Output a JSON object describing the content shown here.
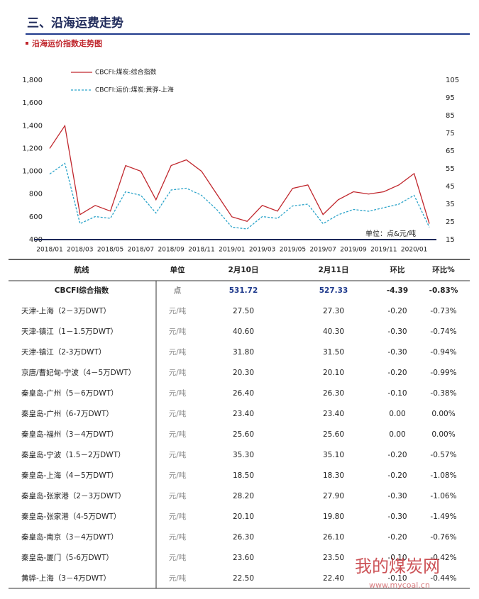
{
  "header": {
    "title": "三、沿海运费走势",
    "subtitle": "沿海运价指数走势图"
  },
  "chart_data": {
    "type": "line",
    "categories": [
      "2018/01",
      null,
      "2018/03",
      null,
      "2018/05",
      null,
      "2018/07",
      null,
      "2018/09",
      null,
      "2018/11",
      null,
      "2019/01",
      null,
      "2019/03",
      null,
      "2019/05",
      null,
      "2019/07",
      null,
      "2019/09",
      null,
      "2019/11",
      null,
      "2020/01",
      null
    ],
    "series": [
      {
        "name": "CBCFI:煤炭:综合指数",
        "color": "#c0272d",
        "values": [
          1200,
          1400,
          620,
          700,
          650,
          1050,
          1000,
          750,
          1050,
          1100,
          1000,
          800,
          600,
          560,
          700,
          650,
          850,
          880,
          620,
          750,
          820,
          800,
          820,
          880,
          980,
          540
        ]
      },
      {
        "name": "CBCFI:运价:煤炭:黄骅-上海",
        "color": "#2aa3c9",
        "axis": "y2",
        "dashed": true,
        "values": [
          52,
          58,
          24,
          28,
          27,
          42,
          40,
          30,
          43,
          44,
          40,
          32,
          22,
          21,
          28,
          27,
          34,
          35,
          24,
          29,
          32,
          31,
          33,
          35,
          40,
          22
        ]
      }
    ],
    "ylim": [
      400,
      1800
    ],
    "yticks": [
      {
        "value": 1800,
        "label": "1,800"
      },
      {
        "value": 1600,
        "label": "1,600"
      },
      {
        "value": 1400,
        "label": "1,400"
      },
      {
        "value": 1200,
        "label": "1,200"
      },
      {
        "value": 1000,
        "label": "1,000"
      },
      800,
      600,
      400
    ],
    "y2lim": [
      15,
      105
    ],
    "y2ticks": [
      105,
      95,
      85,
      75,
      65,
      55,
      45,
      35,
      25,
      15
    ],
    "annotation": "单位：点&元/吨"
  },
  "table": {
    "header": [
      "航线",
      "单位",
      "2月10日",
      "2月11日",
      "环比",
      "环比%"
    ],
    "rows": [
      [
        "CBCFI综合指数",
        "点",
        "531.72",
        "527.33",
        "-4.39",
        "-0.83%"
      ],
      [
        "天津-上海（2－3万DWT）",
        "元/吨",
        "27.50",
        "27.30",
        "-0.20",
        "-0.73%"
      ],
      [
        "天津-镇江（1－1.5万DWT）",
        "元/吨",
        "40.60",
        "40.30",
        "-0.30",
        "-0.74%"
      ],
      [
        "天津-镇江（2-3万DWT）",
        "元/吨",
        "31.80",
        "31.50",
        "-0.30",
        "-0.94%"
      ],
      [
        "京唐/曹妃甸-宁波（4－5万DWT）",
        "元/吨",
        "20.30",
        "20.10",
        "-0.20",
        "-0.99%"
      ],
      [
        "秦皇岛-广州（5－6万DWT）",
        "元/吨",
        "26.40",
        "26.30",
        "-0.10",
        "-0.38%"
      ],
      [
        "秦皇岛-广州（6-7万DWT）",
        "元/吨",
        "23.40",
        "23.40",
        "0.00",
        "0.00%"
      ],
      [
        "秦皇岛-福州（3－4万DWT）",
        "元/吨",
        "25.60",
        "25.60",
        "0.00",
        "0.00%"
      ],
      [
        "秦皇岛-宁波（1.5－2万DWT）",
        "元/吨",
        "35.30",
        "35.10",
        "-0.20",
        "-0.57%"
      ],
      [
        "秦皇岛-上海（4－5万DWT）",
        "元/吨",
        "18.50",
        "18.30",
        "-0.20",
        "-1.08%"
      ],
      [
        "秦皇岛-张家港（2－3万DWT）",
        "元/吨",
        "28.20",
        "27.90",
        "-0.30",
        "-1.06%"
      ],
      [
        "秦皇岛-张家港（4-5万DWT）",
        "元/吨",
        "20.10",
        "19.80",
        "-0.30",
        "-1.49%"
      ],
      [
        "秦皇岛-南京（3－4万DWT）",
        "元/吨",
        "26.30",
        "26.10",
        "-0.20",
        "-0.76%"
      ],
      [
        "秦皇岛-厦门（5-6万DWT）",
        "元/吨",
        "23.60",
        "23.50",
        "-0.10",
        "-0.42%"
      ],
      [
        "黄骅-上海（3－4万DWT）",
        "元/吨",
        "22.50",
        "22.40",
        "-0.10",
        "-0.44%"
      ]
    ]
  },
  "watermark": {
    "name": "我的煤炭网",
    "url": "www.mycoal.cn"
  }
}
